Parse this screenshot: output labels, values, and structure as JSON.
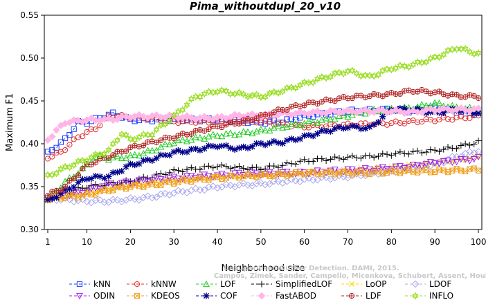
{
  "chart_data": {
    "type": "line",
    "title": "Pima_withoutdupl_20_v10",
    "xlabel": "Neighborhood size",
    "ylabel": "Maximum F1",
    "xlim": [
      1,
      100
    ],
    "ylim": [
      0.3,
      0.55
    ],
    "x_ticks": [
      1,
      10,
      20,
      30,
      40,
      50,
      60,
      70,
      80,
      90,
      100
    ],
    "y_ticks": [
      "0.30",
      "0.35",
      "0.40",
      "0.45",
      "0.50",
      "0.55"
    ],
    "grid": false,
    "legend_placement": "bottom",
    "watermark": [
      "Campos, Zimek, Sander, Campello, Micenkova, Schubert, Assent, Houle",
      "Unsupervised Outlier Detection. DAMI, 2015."
    ],
    "series": [
      {
        "name": "kNN",
        "color": "#1e3cff",
        "marker": "square",
        "points": [
          [
            1,
            0.389
          ],
          [
            5,
            0.405
          ],
          [
            8,
            0.425
          ],
          [
            10,
            0.425
          ],
          [
            13,
            0.43
          ],
          [
            16,
            0.435
          ],
          [
            20,
            0.428
          ],
          [
            25,
            0.428
          ],
          [
            30,
            0.428
          ],
          [
            40,
            0.428
          ],
          [
            50,
            0.425
          ],
          [
            55,
            0.426
          ],
          [
            60,
            0.432
          ],
          [
            70,
            0.438
          ],
          [
            80,
            0.44
          ],
          [
            85,
            0.438
          ],
          [
            90,
            0.442
          ],
          [
            95,
            0.438
          ],
          [
            100,
            0.435
          ]
        ]
      },
      {
        "name": "kNNW",
        "color": "#e03030",
        "marker": "circle",
        "points": [
          [
            1,
            0.384
          ],
          [
            4,
            0.39
          ],
          [
            8,
            0.408
          ],
          [
            12,
            0.418
          ],
          [
            15,
            0.432
          ],
          [
            18,
            0.432
          ],
          [
            25,
            0.43
          ],
          [
            30,
            0.426
          ],
          [
            40,
            0.426
          ],
          [
            50,
            0.426
          ],
          [
            60,
            0.42
          ],
          [
            70,
            0.422
          ],
          [
            80,
            0.424
          ],
          [
            90,
            0.428
          ],
          [
            100,
            0.432
          ]
        ]
      },
      {
        "name": "LOF",
        "color": "#22cc22",
        "marker": "triangle",
        "points": [
          [
            1,
            0.335
          ],
          [
            5,
            0.355
          ],
          [
            9,
            0.37
          ],
          [
            12,
            0.385
          ],
          [
            15,
            0.383
          ],
          [
            20,
            0.385
          ],
          [
            25,
            0.392
          ],
          [
            30,
            0.402
          ],
          [
            35,
            0.406
          ],
          [
            40,
            0.41
          ],
          [
            45,
            0.412
          ],
          [
            50,
            0.415
          ],
          [
            55,
            0.42
          ],
          [
            60,
            0.424
          ],
          [
            65,
            0.428
          ],
          [
            70,
            0.433
          ],
          [
            75,
            0.438
          ],
          [
            80,
            0.44
          ],
          [
            85,
            0.442
          ],
          [
            90,
            0.447
          ],
          [
            95,
            0.442
          ],
          [
            100,
            0.44
          ]
        ]
      },
      {
        "name": "SimplifiedLOF",
        "color": "#000000",
        "marker": "plus",
        "points": [
          [
            1,
            0.336
          ],
          [
            5,
            0.343
          ],
          [
            10,
            0.35
          ],
          [
            15,
            0.353
          ],
          [
            20,
            0.356
          ],
          [
            25,
            0.362
          ],
          [
            30,
            0.368
          ],
          [
            35,
            0.371
          ],
          [
            40,
            0.374
          ],
          [
            45,
            0.372
          ],
          [
            50,
            0.371
          ],
          [
            55,
            0.375
          ],
          [
            60,
            0.38
          ],
          [
            65,
            0.382
          ],
          [
            70,
            0.384
          ],
          [
            75,
            0.385
          ],
          [
            80,
            0.388
          ],
          [
            85,
            0.39
          ],
          [
            90,
            0.392
          ],
          [
            95,
            0.396
          ],
          [
            100,
            0.402
          ]
        ]
      },
      {
        "name": "LoOP",
        "color": "#ffd400",
        "marker": "x",
        "points": [
          [
            1,
            0.335
          ],
          [
            5,
            0.338
          ],
          [
            10,
            0.343
          ],
          [
            15,
            0.348
          ],
          [
            20,
            0.352
          ],
          [
            25,
            0.355
          ],
          [
            30,
            0.358
          ],
          [
            35,
            0.36
          ],
          [
            40,
            0.362
          ],
          [
            45,
            0.362
          ],
          [
            50,
            0.363
          ],
          [
            55,
            0.364
          ],
          [
            60,
            0.366
          ],
          [
            65,
            0.367
          ],
          [
            70,
            0.369
          ],
          [
            75,
            0.371
          ],
          [
            80,
            0.372
          ],
          [
            85,
            0.375
          ],
          [
            90,
            0.378
          ],
          [
            95,
            0.381
          ],
          [
            100,
            0.385
          ]
        ]
      },
      {
        "name": "LDOF",
        "color": "#a8a8ee",
        "marker": "diamond",
        "points": [
          [
            1,
            0.336
          ],
          [
            5,
            0.335
          ],
          [
            10,
            0.333
          ],
          [
            15,
            0.333
          ],
          [
            20,
            0.335
          ],
          [
            25,
            0.338
          ],
          [
            30,
            0.343
          ],
          [
            35,
            0.346
          ],
          [
            40,
            0.35
          ],
          [
            45,
            0.352
          ],
          [
            50,
            0.353
          ],
          [
            55,
            0.356
          ],
          [
            60,
            0.358
          ],
          [
            65,
            0.36
          ],
          [
            70,
            0.362
          ],
          [
            75,
            0.365
          ],
          [
            80,
            0.368
          ],
          [
            85,
            0.372
          ],
          [
            90,
            0.376
          ],
          [
            95,
            0.385
          ],
          [
            100,
            0.392
          ]
        ]
      },
      {
        "name": "ODIN",
        "color": "#a020f0",
        "marker": "triangle-down",
        "points": [
          [
            1,
            0.336
          ],
          [
            5,
            0.34
          ],
          [
            10,
            0.345
          ],
          [
            15,
            0.352
          ],
          [
            20,
            0.355
          ],
          [
            25,
            0.358
          ],
          [
            30,
            0.36
          ],
          [
            35,
            0.362
          ],
          [
            40,
            0.363
          ],
          [
            45,
            0.365
          ],
          [
            50,
            0.365
          ],
          [
            55,
            0.366
          ],
          [
            60,
            0.366
          ],
          [
            65,
            0.368
          ],
          [
            70,
            0.369
          ],
          [
            75,
            0.37
          ],
          [
            80,
            0.372
          ],
          [
            85,
            0.374
          ],
          [
            90,
            0.378
          ],
          [
            95,
            0.38
          ],
          [
            100,
            0.383
          ]
        ]
      },
      {
        "name": "KDEOS",
        "color": "#f0a020",
        "marker": "square-x",
        "points": [
          [
            1,
            0.336
          ],
          [
            5,
            0.338
          ],
          [
            10,
            0.34
          ],
          [
            15,
            0.346
          ],
          [
            20,
            0.35
          ],
          [
            25,
            0.352
          ],
          [
            30,
            0.355
          ],
          [
            35,
            0.358
          ],
          [
            40,
            0.36
          ],
          [
            45,
            0.362
          ],
          [
            50,
            0.363
          ],
          [
            55,
            0.364
          ],
          [
            60,
            0.366
          ],
          [
            65,
            0.366
          ],
          [
            70,
            0.366
          ],
          [
            75,
            0.366
          ],
          [
            80,
            0.367
          ],
          [
            85,
            0.368
          ],
          [
            90,
            0.368
          ],
          [
            95,
            0.369
          ],
          [
            100,
            0.37
          ]
        ]
      },
      {
        "name": "COF",
        "color": "#00008b",
        "marker": "asterisk",
        "points": [
          [
            1,
            0.333
          ],
          [
            5,
            0.345
          ],
          [
            10,
            0.36
          ],
          [
            15,
            0.362
          ],
          [
            20,
            0.375
          ],
          [
            25,
            0.382
          ],
          [
            30,
            0.39
          ],
          [
            35,
            0.393
          ],
          [
            40,
            0.398
          ],
          [
            45,
            0.394
          ],
          [
            50,
            0.4
          ],
          [
            55,
            0.402
          ],
          [
            60,
            0.408
          ],
          [
            65,
            0.415
          ],
          [
            70,
            0.42
          ],
          [
            75,
            0.418
          ],
          [
            80,
            0.44
          ],
          [
            85,
            0.44
          ],
          [
            90,
            0.436
          ],
          [
            95,
            0.44
          ],
          [
            100,
            0.436
          ]
        ]
      },
      {
        "name": "FastABOD",
        "color": "#ffb6e6",
        "marker": "diamond-filled",
        "points": [
          [
            1,
            0.405
          ],
          [
            5,
            0.425
          ],
          [
            10,
            0.428
          ],
          [
            15,
            0.428
          ],
          [
            20,
            0.432
          ],
          [
            25,
            0.432
          ],
          [
            30,
            0.432
          ],
          [
            35,
            0.43
          ],
          [
            40,
            0.43
          ],
          [
            45,
            0.433
          ],
          [
            50,
            0.433
          ],
          [
            55,
            0.435
          ],
          [
            60,
            0.436
          ],
          [
            65,
            0.437
          ],
          [
            70,
            0.438
          ],
          [
            75,
            0.438
          ],
          [
            80,
            0.438
          ],
          [
            85,
            0.437
          ],
          [
            90,
            0.44
          ],
          [
            95,
            0.44
          ],
          [
            100,
            0.44
          ]
        ]
      },
      {
        "name": "LDF",
        "color": "#b22222",
        "marker": "circle-plus",
        "points": [
          [
            1,
            0.34
          ],
          [
            5,
            0.35
          ],
          [
            10,
            0.375
          ],
          [
            15,
            0.385
          ],
          [
            20,
            0.395
          ],
          [
            25,
            0.402
          ],
          [
            30,
            0.408
          ],
          [
            35,
            0.414
          ],
          [
            40,
            0.42
          ],
          [
            45,
            0.425
          ],
          [
            50,
            0.432
          ],
          [
            55,
            0.44
          ],
          [
            60,
            0.446
          ],
          [
            65,
            0.45
          ],
          [
            70,
            0.454
          ],
          [
            75,
            0.456
          ],
          [
            80,
            0.458
          ],
          [
            85,
            0.462
          ],
          [
            90,
            0.46
          ],
          [
            95,
            0.456
          ],
          [
            100,
            0.455
          ]
        ]
      },
      {
        "name": "INFLO",
        "color": "#99dd22",
        "marker": "star",
        "points": [
          [
            1,
            0.362
          ],
          [
            5,
            0.372
          ],
          [
            10,
            0.382
          ],
          [
            15,
            0.392
          ],
          [
            18,
            0.412
          ],
          [
            20,
            0.405
          ],
          [
            25,
            0.412
          ],
          [
            30,
            0.432
          ],
          [
            35,
            0.455
          ],
          [
            40,
            0.462
          ],
          [
            45,
            0.458
          ],
          [
            50,
            0.455
          ],
          [
            55,
            0.462
          ],
          [
            60,
            0.47
          ],
          [
            65,
            0.478
          ],
          [
            70,
            0.485
          ],
          [
            75,
            0.478
          ],
          [
            80,
            0.488
          ],
          [
            85,
            0.492
          ],
          [
            90,
            0.5
          ],
          [
            95,
            0.512
          ],
          [
            100,
            0.505
          ]
        ]
      }
    ]
  }
}
